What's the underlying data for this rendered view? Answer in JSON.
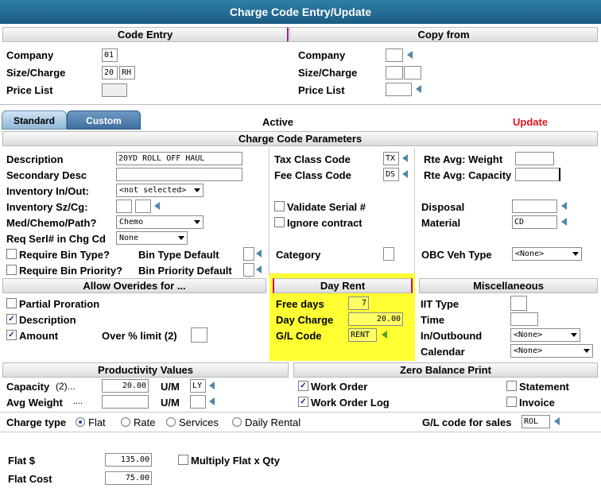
{
  "window": {
    "title": "Charge Code Entry/Update"
  },
  "code_entry": {
    "header": "Code Entry",
    "company_label": "Company",
    "company": "01",
    "size_label": "Size/Charge",
    "size": "20",
    "charge": "RH",
    "price_list_label": "Price List"
  },
  "copy_from": {
    "header": "Copy from",
    "company_label": "Company",
    "size_label": "Size/Charge",
    "price_list_label": "Price List"
  },
  "tabs": {
    "standard": "Standard",
    "custom": "Custom",
    "status": "Active",
    "action": "Update"
  },
  "params": {
    "header": "Charge Code Parameters"
  },
  "left": {
    "description_label": "Description",
    "description": "20YD ROLL OFF HAUL",
    "secondary_label": "Secondary Desc",
    "inventory_inout_label": "Inventory In/Out:",
    "inventory_inout": "<not selected>",
    "inventory_sz_label": "Inventory Sz/Cg:",
    "medchemo_label": "Med/Chemo/Path?",
    "medchemo": "Chemo",
    "reqserl_label": "Req Serl# in Chg Cd",
    "reqserl": "None",
    "require_bin_type": "Require Bin Type?",
    "bin_type_default": "Bin Type Default",
    "require_bin_priority": "Require Bin Priority?",
    "bin_priority_default": "Bin Priority Default"
  },
  "middle": {
    "tax_label": "Tax Class Code",
    "tax": "TX",
    "fee_label": "Fee Class Code",
    "fee": "DS",
    "validate_serial": "Validate Serial #",
    "ignore_contract": "Ignore contract",
    "category_label": "Category"
  },
  "right": {
    "rte_weight_label": "Rte Avg: Weight",
    "rte_capacity_label": "Rte Avg: Capacity",
    "disposal_label": "Disposal",
    "material_label": "Material",
    "material": "CD",
    "obc_label": "OBC Veh Type",
    "obc": "<None>"
  },
  "overrides": {
    "header": "Allow Overides for ...",
    "partial": "Partial Proration",
    "description": "Description",
    "amount": "Amount",
    "over_limit_label": "Over % limit (2)"
  },
  "day_rent": {
    "header": "Day Rent",
    "free_days_label": "Free days",
    "free_days": "7",
    "day_charge_label": "Day Charge",
    "day_charge": "20.00",
    "gl_label": "G/L Code",
    "gl": "RENT"
  },
  "misc": {
    "header": "Miscellaneous",
    "iit_label": "IIT Type",
    "time_label": "Time",
    "inout_label": "In/Outbound",
    "inout": "<None>",
    "calendar_label": "Calendar",
    "calendar": "<None>"
  },
  "productivity": {
    "header": "Productivity Values",
    "capacity_label": "Capacity",
    "capacity_paren": "(2)...",
    "capacity": "20.00",
    "um_label": "U/M",
    "um": "LY",
    "avg_weight_label": "Avg Weight",
    "avg_weight_dots": "....",
    "um2_label": "U/M"
  },
  "zero_balance": {
    "header": "Zero Balance Print",
    "work_order": "Work Order",
    "work_order_log": "Work Order Log",
    "statement": "Statement",
    "invoice": "Invoice"
  },
  "charge_type": {
    "label": "Charge type",
    "options": [
      "Flat",
      "Rate",
      "Services",
      "Daily Rental"
    ],
    "gl_sales_label": "G/L code for sales",
    "gl_sales": "ROL"
  },
  "flat": {
    "flat_label": "Flat $",
    "flat": "135.00",
    "flat_cost_label": "Flat Cost",
    "flat_cost": "75.00",
    "multiply_label": "Multiply Flat x Qty"
  }
}
